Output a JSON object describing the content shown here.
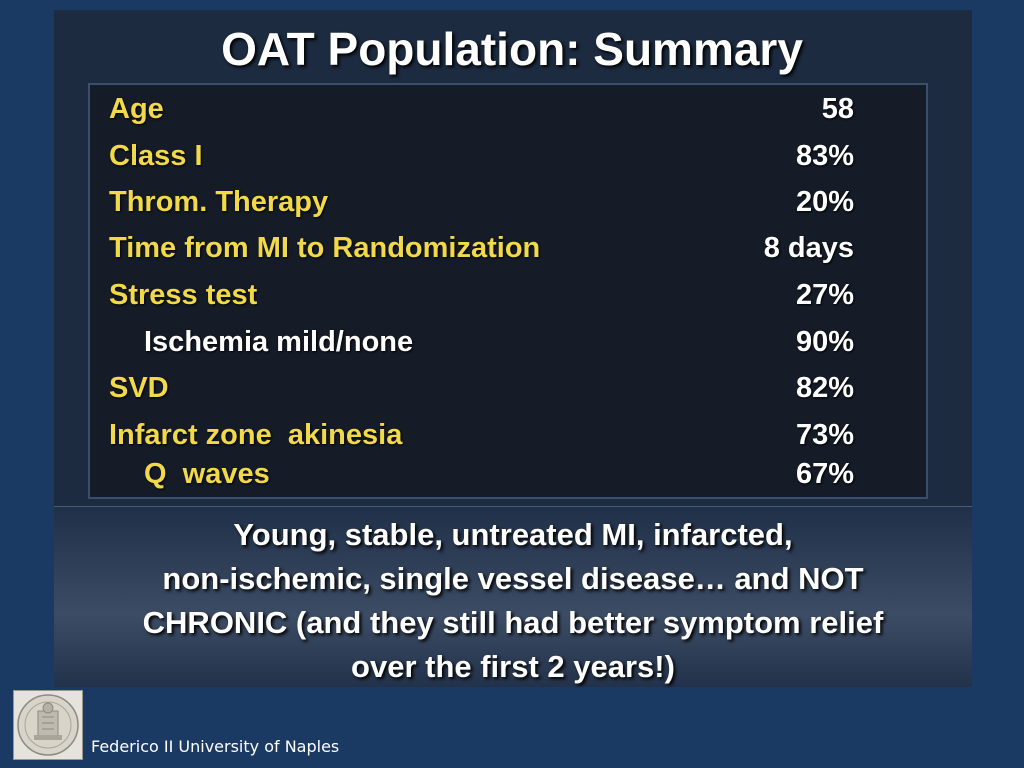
{
  "title": "OAT Population: Summary",
  "rows": [
    {
      "label": "Age",
      "value": "58"
    },
    {
      "label": "Class I",
      "value": "83%"
    },
    {
      "label": "Throm. Therapy",
      "value": "20%"
    },
    {
      "label": "Time from MI to Randomization",
      "value": "8 days"
    },
    {
      "label": "Stress test",
      "value": "27%"
    },
    {
      "label": "Ischemia mild/none",
      "value": "90%"
    },
    {
      "label": "SVD",
      "value": "82%"
    },
    {
      "label": "Infarct zone  akinesia",
      "value": "73%"
    },
    {
      "label": "Q  waves",
      "value": "67%"
    }
  ],
  "takeaway": {
    "line1": "Young, stable, untreated MI, infarcted,",
    "line2": "non-ischemic, single vessel disease… and NOT",
    "line3": "CHRONIC (and they still had better symptom relief",
    "line4": "over the first 2 years!)"
  },
  "footer": "Federico II University of Naples",
  "logo_icon": "university-seal-icon",
  "colors": {
    "background": "#1b3a63",
    "label_yellow": "#f2d94a",
    "text_white": "#ffffff"
  }
}
